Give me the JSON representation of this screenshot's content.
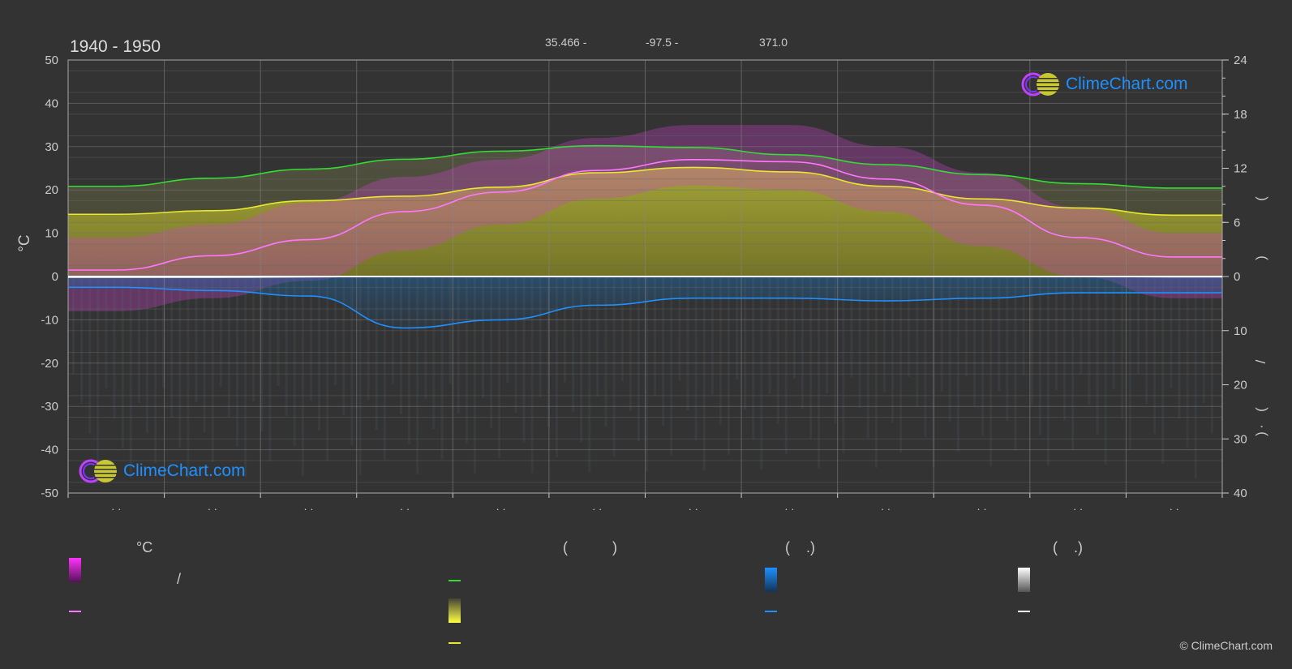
{
  "header": {
    "title": "1940 - 1950",
    "lat": "35.466 -",
    "lon": "-97.5 -",
    "elevation": "371.0"
  },
  "branding": {
    "logo_text": "ClimeChart.com",
    "copyright": "© ClimeChart.com"
  },
  "legend": {
    "col1_head": "°C",
    "col2_head": "(           )",
    "col3_head": "(    .)",
    "col4_head": "(    .)",
    "slash": "/",
    "colors": {
      "temp_range": "#e020e0",
      "temp_avg": "#ff77ff",
      "daylight": "#33dd33",
      "sunshine": "#e8e830",
      "sunshine_line": "#e8e830",
      "rain": "#1e90ff",
      "rain_line": "#1e90ff",
      "snow": "#dddddd",
      "snow_line": "#ffffff"
    }
  },
  "chart_data": {
    "type": "area",
    "title": "1940 - 1950",
    "ylabel_left": "°C",
    "ylim_left": [
      -50,
      50
    ],
    "ylim_right_upper": [
      0,
      24
    ],
    "ylim_right_lower": [
      0,
      40
    ],
    "left_ticks": [
      "50",
      "40",
      "30",
      "20",
      "10",
      "0",
      "-10",
      "-20",
      "-30",
      "-40",
      "-50"
    ],
    "right_ticks_upper": [
      "24",
      "18",
      "12",
      "6",
      "0"
    ],
    "right_ticks_lower": [
      "10",
      "20",
      "30",
      "40"
    ],
    "right_axis_glyphs": [
      "(",
      ")",
      "/",
      "(",
      "·",
      ")"
    ],
    "month_labels": [
      "· ·",
      "· ·",
      "· ·",
      "· ·",
      "· ·",
      "· ·",
      "· ·",
      "· ·",
      "· ·",
      "· ·",
      "· ·",
      "· ·"
    ],
    "grid": true,
    "series": [
      {
        "key": "daylight",
        "axis": "hours",
        "color": "#33dd33",
        "values": [
          10.0,
          10.9,
          11.9,
          13.0,
          13.9,
          14.5,
          14.3,
          13.5,
          12.4,
          11.3,
          10.3,
          9.8
        ]
      },
      {
        "key": "sunshine",
        "axis": "hours",
        "color": "#e8e830",
        "values": [
          6.9,
          7.3,
          8.4,
          8.9,
          9.9,
          11.5,
          12.1,
          11.6,
          10.0,
          8.6,
          7.6,
          6.8
        ]
      },
      {
        "key": "temp_avg",
        "axis": "celsius",
        "color": "#ff77ff",
        "values": [
          1.5,
          4.8,
          8.5,
          15.0,
          19.5,
          24.5,
          27.0,
          26.5,
          22.5,
          16.5,
          9.0,
          4.5
        ]
      },
      {
        "key": "temp_max_band",
        "axis": "celsius",
        "values": [
          9,
          12,
          17,
          23,
          27,
          32,
          35,
          35,
          30,
          24,
          16,
          10
        ]
      },
      {
        "key": "temp_min_band",
        "axis": "celsius",
        "values": [
          -8,
          -5,
          -1,
          6,
          12,
          18,
          21,
          20,
          15,
          7,
          0,
          -5
        ]
      },
      {
        "key": "rain",
        "axis": "mm",
        "color": "#1e90ff",
        "values": [
          2.0,
          2.6,
          3.6,
          9.5,
          8.0,
          5.3,
          4.0,
          4.0,
          4.5,
          4.0,
          3.0,
          3.0
        ]
      },
      {
        "key": "snow",
        "axis": "mm",
        "color": "#ffffff",
        "values": [
          0.2,
          0.2,
          0.1,
          0.0,
          0.0,
          0.0,
          0.0,
          0.0,
          0.0,
          0.0,
          0.0,
          0.1
        ]
      }
    ]
  }
}
